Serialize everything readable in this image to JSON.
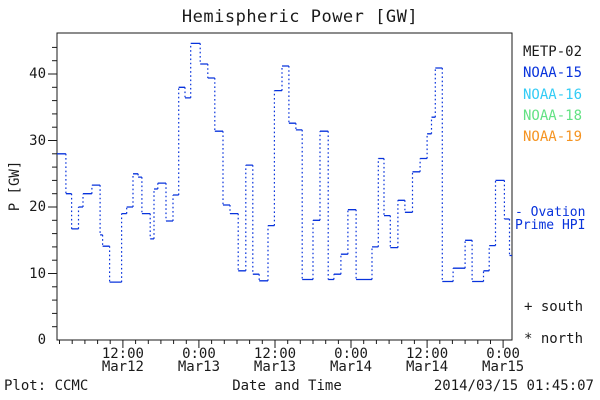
{
  "title": "Hemispheric Power [GW]",
  "axes": {
    "y_label": "P [GW]",
    "x_label": "Date and Time",
    "y_ticks": [
      0,
      10,
      20,
      30,
      40
    ],
    "y_minor_step_gw": 2,
    "y_range_gw": [
      0,
      46
    ],
    "x_ticks": [
      {
        "t": 12,
        "time": "12:00",
        "date": "Mar12"
      },
      {
        "t": 24,
        "time": "0:00",
        "date": "Mar13"
      },
      {
        "t": 36,
        "time": "12:00",
        "date": "Mar13"
      },
      {
        "t": 48,
        "time": "0:00",
        "date": "Mar14"
      },
      {
        "t": 60,
        "time": "12:00",
        "date": "Mar14"
      },
      {
        "t": 72,
        "time": "0:00",
        "date": "Mar15"
      }
    ],
    "x_minor_step_hours": 2,
    "x_range_hours": [
      1.6,
      73.4
    ]
  },
  "legend": {
    "satellites": [
      {
        "label": "METP-02",
        "color": "#1a1a1a"
      },
      {
        "label": "NOAA-15",
        "color": "#0833dc"
      },
      {
        "label": "NOAA-16",
        "color": "#33ccf5"
      },
      {
        "label": "NOAA-18",
        "color": "#63e284"
      },
      {
        "label": "NOAA-19",
        "color": "#f59422"
      }
    ],
    "model_line_label_1": "- Ovation",
    "model_line_label_2": "Prime HPI",
    "south_marker_label": "+ south",
    "north_marker_label": "* north"
  },
  "footer": {
    "left": "Plot: CCMC",
    "right": "2014/03/15 01:45:07"
  },
  "chart_data": {
    "type": "line",
    "style": "step-post, dotted vertical connectors",
    "series_name": "Ovation Prime HPI",
    "color": "#0833dc",
    "x_unit": "hours since 2014-03-12 00:00 UT",
    "ylabel": "P [GW]",
    "xlabel": "Date and Time",
    "ylim": [
      0,
      46
    ],
    "xlim_hours": [
      1.6,
      73.4
    ],
    "t_end": 73.5,
    "steps": [
      [
        1.6,
        28.0
      ],
      [
        3.0,
        22.0
      ],
      [
        3.9,
        16.7
      ],
      [
        5.0,
        20.0
      ],
      [
        5.7,
        22.0
      ],
      [
        7.1,
        23.3
      ],
      [
        8.4,
        15.8
      ],
      [
        8.8,
        14.1
      ],
      [
        9.9,
        8.7
      ],
      [
        11.8,
        19.0
      ],
      [
        12.6,
        20.0
      ],
      [
        13.6,
        25.0
      ],
      [
        14.4,
        24.5
      ],
      [
        15.0,
        19.0
      ],
      [
        16.3,
        15.2
      ],
      [
        16.9,
        22.7
      ],
      [
        17.5,
        23.6
      ],
      [
        18.8,
        17.9
      ],
      [
        19.9,
        21.8
      ],
      [
        20.8,
        38.0
      ],
      [
        21.8,
        36.4
      ],
      [
        22.7,
        44.6
      ],
      [
        24.2,
        41.5
      ],
      [
        25.4,
        39.4
      ],
      [
        26.5,
        31.4
      ],
      [
        27.8,
        20.3
      ],
      [
        28.9,
        19.0
      ],
      [
        30.2,
        10.4
      ],
      [
        31.4,
        26.3
      ],
      [
        32.5,
        9.9
      ],
      [
        33.5,
        8.9
      ],
      [
        34.9,
        17.2
      ],
      [
        35.9,
        37.5
      ],
      [
        37.1,
        41.2
      ],
      [
        38.2,
        32.6
      ],
      [
        39.3,
        31.6
      ],
      [
        40.3,
        9.1
      ],
      [
        42.0,
        18.0
      ],
      [
        43.1,
        31.4
      ],
      [
        44.4,
        9.1
      ],
      [
        45.3,
        9.9
      ],
      [
        46.4,
        12.9
      ],
      [
        47.5,
        19.6
      ],
      [
        48.8,
        9.1
      ],
      [
        51.3,
        14.0
      ],
      [
        52.3,
        27.3
      ],
      [
        53.2,
        18.7
      ],
      [
        54.2,
        13.9
      ],
      [
        55.4,
        21.0
      ],
      [
        56.5,
        19.2
      ],
      [
        57.7,
        25.3
      ],
      [
        58.9,
        27.3
      ],
      [
        60.0,
        31.0
      ],
      [
        60.7,
        33.5
      ],
      [
        61.3,
        40.9
      ],
      [
        62.4,
        8.8
      ],
      [
        64.1,
        10.8
      ],
      [
        66.0,
        15.0
      ],
      [
        67.1,
        8.8
      ],
      [
        68.9,
        10.4
      ],
      [
        69.8,
        14.2
      ],
      [
        70.8,
        24.0
      ],
      [
        72.2,
        18.2
      ],
      [
        73.0,
        12.7
      ]
    ]
  }
}
